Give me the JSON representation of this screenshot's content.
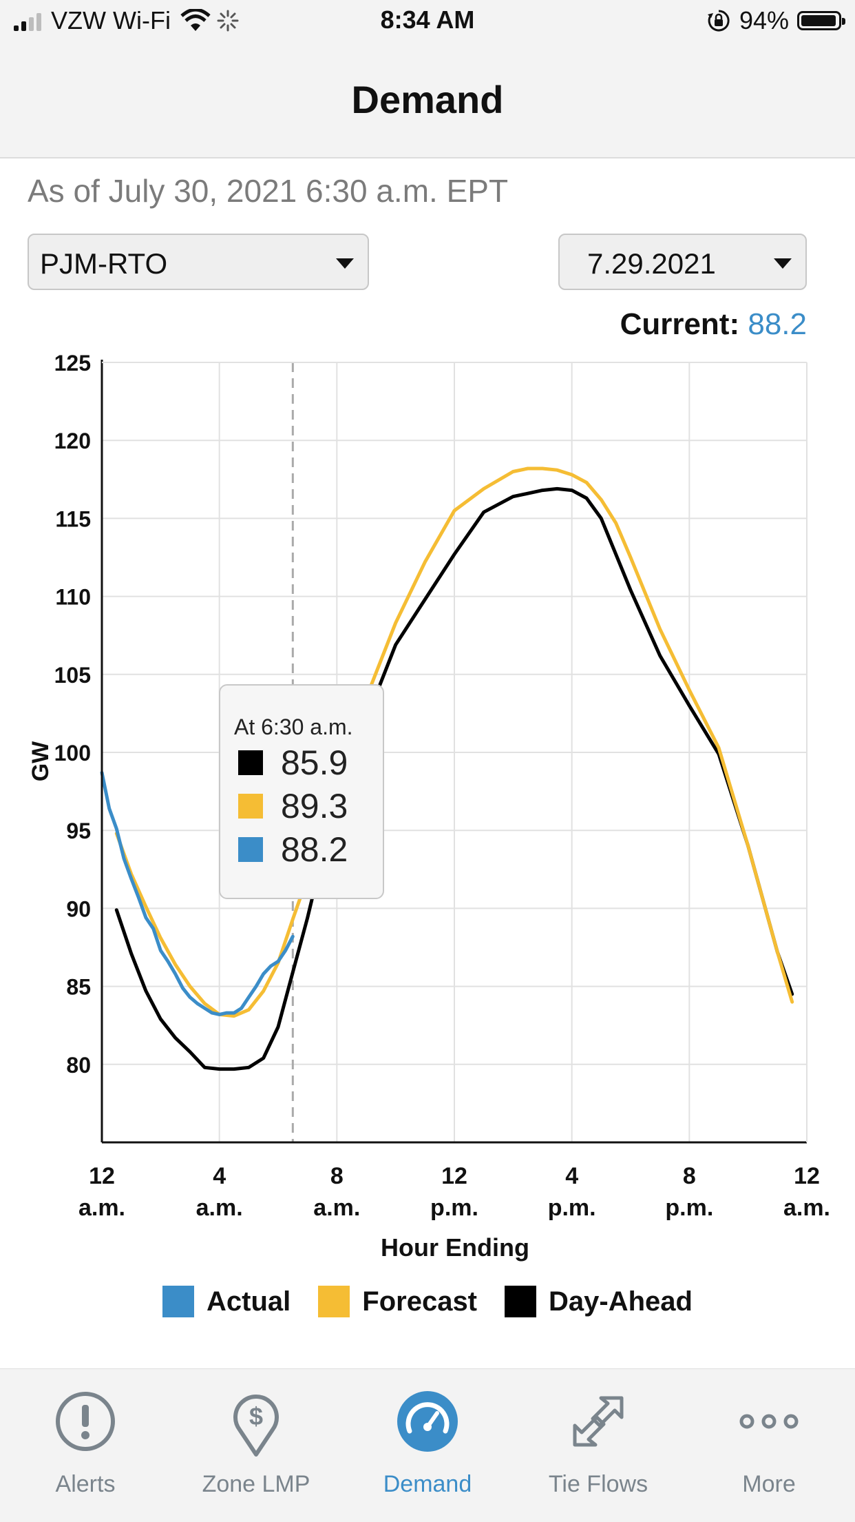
{
  "status": {
    "carrier": "VZW Wi-Fi",
    "time": "8:34 AM",
    "battery": "94%",
    "battery_level": 0.94
  },
  "nav": {
    "title": "Demand"
  },
  "as_of": "As of July 30, 2021 6:30 a.m. EPT",
  "zone_select": {
    "value": "PJM-RTO"
  },
  "date_select": {
    "value": "7.29.2021"
  },
  "current": {
    "label": "Current:",
    "value": "88.2"
  },
  "tooltip": {
    "title": "At 6:30 a.m.",
    "rows": [
      {
        "value": "85.9",
        "color": "#000000"
      },
      {
        "value": "89.3",
        "color": "#f5bd34"
      },
      {
        "value": "88.2",
        "color": "#3b8dc8"
      }
    ]
  },
  "chart_data": {
    "type": "line",
    "ylabel": "GW",
    "xlabel": "Hour Ending",
    "ylim": [
      75,
      125
    ],
    "xlim": [
      0,
      24
    ],
    "yticks": [
      "125",
      "120",
      "115",
      "110",
      "105",
      "100",
      "95",
      "90",
      "85",
      "80"
    ],
    "xticks": [
      {
        "h": 0,
        "top": "12",
        "bottom": "a.m."
      },
      {
        "h": 4,
        "top": "4",
        "bottom": "a.m."
      },
      {
        "h": 8,
        "top": "8",
        "bottom": "a.m."
      },
      {
        "h": 12,
        "top": "12",
        "bottom": "p.m."
      },
      {
        "h": 16,
        "top": "4",
        "bottom": "p.m."
      },
      {
        "h": 20,
        "top": "8",
        "bottom": "p.m."
      },
      {
        "h": 24,
        "top": "12",
        "bottom": "a.m."
      }
    ],
    "grid": true,
    "marker_hour": 6.5,
    "series": [
      {
        "name": "Actual",
        "color": "#3b8dc8",
        "x": [
          0,
          0.25,
          0.5,
          0.75,
          1,
          1.25,
          1.5,
          1.75,
          2,
          2.25,
          2.5,
          2.75,
          3,
          3.25,
          3.5,
          3.75,
          4,
          4.25,
          4.5,
          4.75,
          5,
          5.25,
          5.5,
          5.75,
          6,
          6.25,
          6.5
        ],
        "y": [
          98.7,
          96.4,
          95.1,
          93.2,
          91.9,
          90.7,
          89.4,
          88.7,
          87.3,
          86.6,
          85.8,
          84.9,
          84.3,
          83.9,
          83.6,
          83.3,
          83.2,
          83.3,
          83.3,
          83.6,
          84.3,
          85.0,
          85.8,
          86.3,
          86.6,
          87.3,
          88.2
        ]
      },
      {
        "name": "Forecast",
        "color": "#f5bd34",
        "x": [
          0.5,
          1,
          1.5,
          2,
          2.5,
          3,
          3.5,
          4,
          4.5,
          5,
          5.5,
          6,
          6.5,
          7,
          7.5,
          8,
          9,
          10,
          11,
          12,
          13,
          14,
          14.5,
          15,
          15.5,
          16,
          16.5,
          17,
          17.5,
          18,
          19,
          20,
          21,
          22,
          23,
          23.5
        ],
        "y": [
          94.8,
          92.2,
          90.1,
          88.1,
          86.4,
          85.0,
          83.9,
          83.2,
          83.1,
          83.5,
          84.7,
          86.5,
          89.3,
          92.0,
          95.0,
          98.0,
          103.5,
          108.3,
          112.2,
          115.5,
          116.9,
          118.0,
          118.2,
          118.2,
          118.1,
          117.8,
          117.3,
          116.2,
          114.7,
          112.5,
          107.9,
          104.0,
          100.3,
          94.0,
          87.2,
          84.0
        ]
      },
      {
        "name": "Day-Ahead",
        "color": "#000000",
        "x": [
          0.5,
          1,
          1.5,
          2,
          2.5,
          3,
          3.5,
          4,
          4.5,
          5,
          5.5,
          6,
          6.5,
          7,
          7.5,
          8,
          9,
          10,
          11,
          12,
          13,
          14,
          15,
          15.5,
          16,
          16.5,
          17,
          18,
          19,
          20,
          21,
          22,
          23,
          23.5
        ],
        "y": [
          89.9,
          87.1,
          84.7,
          82.9,
          81.7,
          80.8,
          79.8,
          79.7,
          79.7,
          79.8,
          80.4,
          82.4,
          85.9,
          89.4,
          93.3,
          96.3,
          102.1,
          106.9,
          109.8,
          112.7,
          115.4,
          116.4,
          116.8,
          116.9,
          116.8,
          116.3,
          115.0,
          110.4,
          106.2,
          103.0,
          99.9,
          94.0,
          87.2,
          84.5
        ]
      }
    ]
  },
  "legend": [
    {
      "label": "Actual",
      "color": "#3b8dc8"
    },
    {
      "label": "Forecast",
      "color": "#f5bd34"
    },
    {
      "label": "Day-Ahead",
      "color": "#000000"
    }
  ],
  "tabs": [
    {
      "label": "Alerts",
      "icon": "alert-circle-icon"
    },
    {
      "label": "Zone LMP",
      "icon": "dollar-pin-icon"
    },
    {
      "label": "Demand",
      "icon": "gauge-icon",
      "active": true
    },
    {
      "label": "Tie Flows",
      "icon": "tie-flows-arrows-icon"
    },
    {
      "label": "More",
      "icon": "more-dots-icon"
    }
  ]
}
